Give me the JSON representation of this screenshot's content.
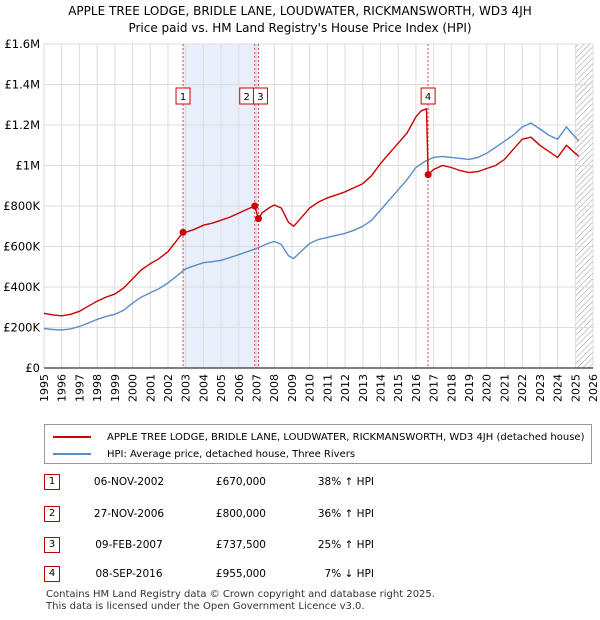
{
  "chart_data": {
    "type": "line",
    "title": "APPLE TREE LODGE, BRIDLE LANE, LOUDWATER, RICKMANSWORTH, WD3 4JH",
    "subtitle": "Price paid vs. HM Land Registry's House Price Index (HPI)",
    "xlim": [
      1995,
      2026
    ],
    "ylim": [
      0,
      1600000
    ],
    "x_ticks": [
      "1995",
      "1996",
      "1997",
      "1998",
      "1999",
      "2000",
      "2001",
      "2002",
      "2003",
      "2004",
      "2005",
      "2006",
      "2007",
      "2008",
      "2009",
      "2010",
      "2011",
      "2012",
      "2013",
      "2014",
      "2015",
      "2016",
      "2017",
      "2018",
      "2019",
      "2020",
      "2021",
      "2022",
      "2023",
      "2024",
      "2025",
      "2026"
    ],
    "y_ticks": [
      {
        "value": 0,
        "label": "£0"
      },
      {
        "value": 200000,
        "label": "£200K"
      },
      {
        "value": 400000,
        "label": "£400K"
      },
      {
        "value": 600000,
        "label": "£600K"
      },
      {
        "value": 800000,
        "label": "£800K"
      },
      {
        "value": 1000000,
        "label": "£1M"
      },
      {
        "value": 1200000,
        "label": "£1.2M"
      },
      {
        "value": 1400000,
        "label": "£1.4M"
      },
      {
        "value": 1600000,
        "label": "£1.6M"
      }
    ],
    "shaded_ranges": [
      [
        2002.85,
        2007.11
      ]
    ],
    "hatched_from": 2025.0,
    "series": [
      {
        "name": "APPLE TREE LODGE, BRIDLE LANE, LOUDWATER, RICKMANSWORTH, WD3 4JH (detached house)",
        "color": "#cc0000",
        "points": [
          [
            1995.0,
            270000
          ],
          [
            1995.5,
            262000
          ],
          [
            1996.0,
            258000
          ],
          [
            1996.5,
            265000
          ],
          [
            1997.0,
            280000
          ],
          [
            1997.5,
            305000
          ],
          [
            1998.0,
            330000
          ],
          [
            1998.5,
            350000
          ],
          [
            1999.0,
            365000
          ],
          [
            1999.5,
            395000
          ],
          [
            2000.0,
            440000
          ],
          [
            2000.5,
            485000
          ],
          [
            2001.0,
            515000
          ],
          [
            2001.5,
            540000
          ],
          [
            2002.0,
            575000
          ],
          [
            2002.5,
            630000
          ],
          [
            2002.85,
            670000
          ],
          [
            2003.0,
            670000
          ],
          [
            2003.5,
            685000
          ],
          [
            2004.0,
            705000
          ],
          [
            2004.5,
            715000
          ],
          [
            2005.0,
            730000
          ],
          [
            2005.5,
            745000
          ],
          [
            2006.0,
            765000
          ],
          [
            2006.5,
            785000
          ],
          [
            2006.9,
            800000
          ],
          [
            2007.0,
            770000
          ],
          [
            2007.11,
            737500
          ],
          [
            2007.3,
            765000
          ],
          [
            2007.7,
            790000
          ],
          [
            2008.0,
            805000
          ],
          [
            2008.4,
            790000
          ],
          [
            2008.8,
            720000
          ],
          [
            2009.1,
            700000
          ],
          [
            2009.5,
            740000
          ],
          [
            2010.0,
            790000
          ],
          [
            2010.5,
            820000
          ],
          [
            2011.0,
            840000
          ],
          [
            2011.5,
            855000
          ],
          [
            2012.0,
            870000
          ],
          [
            2012.5,
            890000
          ],
          [
            2013.0,
            910000
          ],
          [
            2013.5,
            950000
          ],
          [
            2014.0,
            1010000
          ],
          [
            2014.5,
            1060000
          ],
          [
            2015.0,
            1110000
          ],
          [
            2015.5,
            1160000
          ],
          [
            2016.0,
            1240000
          ],
          [
            2016.3,
            1270000
          ],
          [
            2016.6,
            1280000
          ],
          [
            2016.69,
            955000
          ],
          [
            2017.0,
            980000
          ],
          [
            2017.5,
            1000000
          ],
          [
            2018.0,
            990000
          ],
          [
            2018.5,
            975000
          ],
          [
            2019.0,
            965000
          ],
          [
            2019.5,
            970000
          ],
          [
            2020.0,
            985000
          ],
          [
            2020.5,
            1000000
          ],
          [
            2021.0,
            1030000
          ],
          [
            2021.5,
            1080000
          ],
          [
            2022.0,
            1130000
          ],
          [
            2022.5,
            1140000
          ],
          [
            2023.0,
            1100000
          ],
          [
            2023.5,
            1070000
          ],
          [
            2024.0,
            1040000
          ],
          [
            2024.5,
            1100000
          ],
          [
            2025.0,
            1060000
          ],
          [
            2025.2,
            1045000
          ]
        ]
      },
      {
        "name": "HPI: Average price, detached house, Three Rivers",
        "color": "#5b8cc8",
        "points": [
          [
            1995.0,
            195000
          ],
          [
            1995.5,
            190000
          ],
          [
            1996.0,
            188000
          ],
          [
            1996.5,
            193000
          ],
          [
            1997.0,
            205000
          ],
          [
            1997.5,
            222000
          ],
          [
            1998.0,
            240000
          ],
          [
            1998.5,
            255000
          ],
          [
            1999.0,
            265000
          ],
          [
            1999.5,
            285000
          ],
          [
            2000.0,
            320000
          ],
          [
            2000.5,
            350000
          ],
          [
            2001.0,
            372000
          ],
          [
            2001.5,
            392000
          ],
          [
            2002.0,
            420000
          ],
          [
            2002.5,
            455000
          ],
          [
            2003.0,
            490000
          ],
          [
            2003.5,
            505000
          ],
          [
            2004.0,
            520000
          ],
          [
            2004.5,
            525000
          ],
          [
            2005.0,
            532000
          ],
          [
            2005.5,
            545000
          ],
          [
            2006.0,
            560000
          ],
          [
            2006.5,
            575000
          ],
          [
            2007.0,
            590000
          ],
          [
            2007.5,
            610000
          ],
          [
            2008.0,
            625000
          ],
          [
            2008.4,
            610000
          ],
          [
            2008.8,
            555000
          ],
          [
            2009.1,
            540000
          ],
          [
            2009.5,
            575000
          ],
          [
            2010.0,
            615000
          ],
          [
            2010.5,
            635000
          ],
          [
            2011.0,
            645000
          ],
          [
            2011.5,
            655000
          ],
          [
            2012.0,
            665000
          ],
          [
            2012.5,
            680000
          ],
          [
            2013.0,
            700000
          ],
          [
            2013.5,
            730000
          ],
          [
            2014.0,
            780000
          ],
          [
            2014.5,
            830000
          ],
          [
            2015.0,
            880000
          ],
          [
            2015.5,
            930000
          ],
          [
            2016.0,
            990000
          ],
          [
            2016.5,
            1020000
          ],
          [
            2017.0,
            1040000
          ],
          [
            2017.5,
            1045000
          ],
          [
            2018.0,
            1040000
          ],
          [
            2018.5,
            1035000
          ],
          [
            2019.0,
            1030000
          ],
          [
            2019.5,
            1040000
          ],
          [
            2020.0,
            1060000
          ],
          [
            2020.5,
            1090000
          ],
          [
            2021.0,
            1120000
          ],
          [
            2021.5,
            1150000
          ],
          [
            2022.0,
            1190000
          ],
          [
            2022.5,
            1210000
          ],
          [
            2023.0,
            1180000
          ],
          [
            2023.5,
            1150000
          ],
          [
            2024.0,
            1130000
          ],
          [
            2024.5,
            1190000
          ],
          [
            2025.0,
            1140000
          ],
          [
            2025.2,
            1120000
          ]
        ]
      }
    ],
    "transactions": [
      {
        "num": "1",
        "x": 2002.85,
        "price": 670000,
        "date": "06-NOV-2002",
        "price_label": "£670,000",
        "hpi": "38% ↑ HPI"
      },
      {
        "num": "2",
        "x": 2006.9,
        "price": 800000,
        "date": "27-NOV-2006",
        "price_label": "£800,000",
        "hpi": "36% ↑ HPI"
      },
      {
        "num": "3",
        "x": 2007.11,
        "price": 737500,
        "date": "09-FEB-2007",
        "price_label": "£737,500",
        "hpi": "25% ↑ HPI"
      },
      {
        "num": "4",
        "x": 2016.69,
        "price": 955000,
        "date": "08-SEP-2016",
        "price_label": "£955,000",
        "hpi": "7% ↓ HPI"
      }
    ],
    "marker_boxes": [
      {
        "label": "1",
        "x": 2002.85
      },
      {
        "label": "2",
        "x": 2006.9
      },
      {
        "label": "3",
        "x": 2007.11
      },
      {
        "label": "4",
        "x": 2016.69
      }
    ]
  },
  "legend": {
    "red_label": "APPLE TREE LODGE, BRIDLE LANE, LOUDWATER, RICKMANSWORTH, WD3 4JH (detached house)",
    "blue_label": "HPI: Average price, detached house, Three Rivers"
  },
  "footer": {
    "line1": "Contains HM Land Registry data © Crown copyright and database right 2025.",
    "line2": "This data is licensed under the Open Government Licence v3.0."
  }
}
